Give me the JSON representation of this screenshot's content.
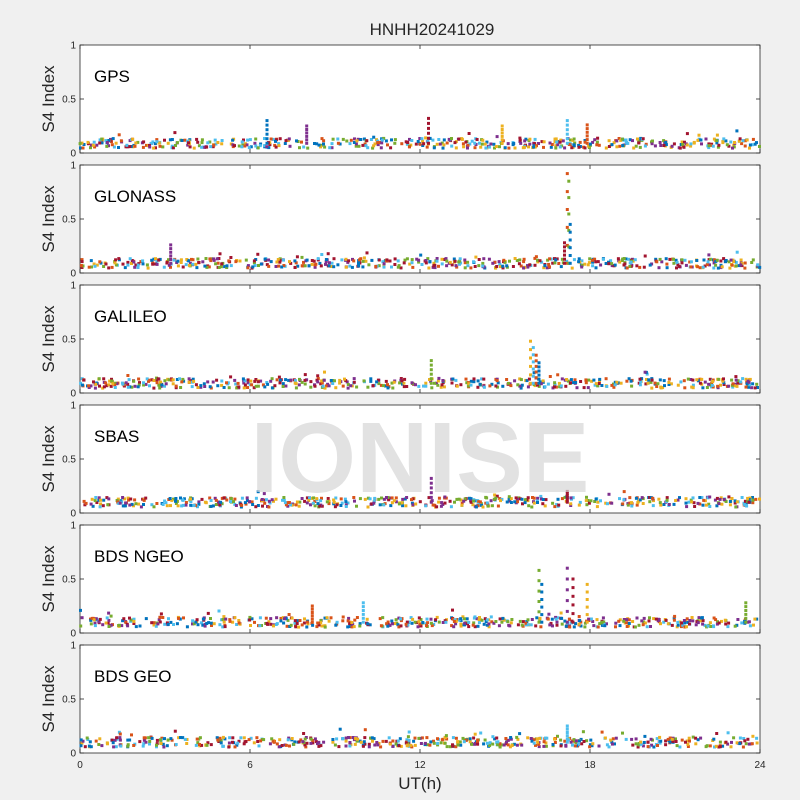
{
  "title": "HNHH20241029",
  "watermark": "IONISE",
  "xlabel": "UT(h)",
  "ylabel": "S4 Index",
  "xticks": [
    "0",
    "6",
    "12",
    "18",
    "24"
  ],
  "yticks": [
    "0",
    "0.5",
    "1"
  ],
  "colors": [
    "#0072BD",
    "#D95319",
    "#EDB120",
    "#7E2F8E",
    "#77AC30",
    "#4DBEEE",
    "#A2142F"
  ],
  "chart_data": [
    {
      "type": "scatter",
      "system": "GPS",
      "xlim": [
        0,
        24
      ],
      "ylim": [
        0,
        1
      ],
      "baseline": 0.09,
      "spikes": [
        {
          "x": 6.6,
          "y": 0.3
        },
        {
          "x": 8.0,
          "y": 0.25
        },
        {
          "x": 12.3,
          "y": 0.32
        },
        {
          "x": 14.9,
          "y": 0.25
        },
        {
          "x": 17.2,
          "y": 0.3
        },
        {
          "x": 17.9,
          "y": 0.26
        }
      ]
    },
    {
      "type": "scatter",
      "system": "GLONASS",
      "xlim": [
        0,
        24
      ],
      "ylim": [
        0,
        1
      ],
      "baseline": 0.09,
      "spikes": [
        {
          "x": 17.2,
          "y": 0.92
        },
        {
          "x": 17.25,
          "y": 0.85
        },
        {
          "x": 17.3,
          "y": 0.45
        },
        {
          "x": 3.2,
          "y": 0.26
        },
        {
          "x": 17.1,
          "y": 0.28
        }
      ]
    },
    {
      "type": "scatter",
      "system": "GALILEO",
      "xlim": [
        0,
        24
      ],
      "ylim": [
        0,
        1
      ],
      "baseline": 0.09,
      "spikes": [
        {
          "x": 15.9,
          "y": 0.48
        },
        {
          "x": 16.0,
          "y": 0.42
        },
        {
          "x": 16.1,
          "y": 0.35
        },
        {
          "x": 12.4,
          "y": 0.3
        },
        {
          "x": 16.2,
          "y": 0.28
        }
      ]
    },
    {
      "type": "scatter",
      "system": "SBAS",
      "xlim": [
        0,
        24
      ],
      "ylim": [
        0,
        1
      ],
      "baseline": 0.1,
      "spikes": [
        {
          "x": 12.4,
          "y": 0.32
        },
        {
          "x": 17.2,
          "y": 0.2
        }
      ]
    },
    {
      "type": "scatter",
      "system": "BDS NGEO",
      "xlim": [
        0,
        24
      ],
      "ylim": [
        0,
        1
      ],
      "baseline": 0.1,
      "spikes": [
        {
          "x": 16.2,
          "y": 0.58
        },
        {
          "x": 16.3,
          "y": 0.45
        },
        {
          "x": 17.2,
          "y": 0.6
        },
        {
          "x": 17.4,
          "y": 0.5
        },
        {
          "x": 17.9,
          "y": 0.45
        },
        {
          "x": 10.0,
          "y": 0.28
        },
        {
          "x": 8.2,
          "y": 0.25
        },
        {
          "x": 23.5,
          "y": 0.28
        }
      ]
    },
    {
      "type": "scatter",
      "system": "BDS GEO",
      "xlim": [
        0,
        24
      ],
      "ylim": [
        0,
        1
      ],
      "baseline": 0.1,
      "spikes": [
        {
          "x": 17.2,
          "y": 0.25
        }
      ]
    }
  ]
}
